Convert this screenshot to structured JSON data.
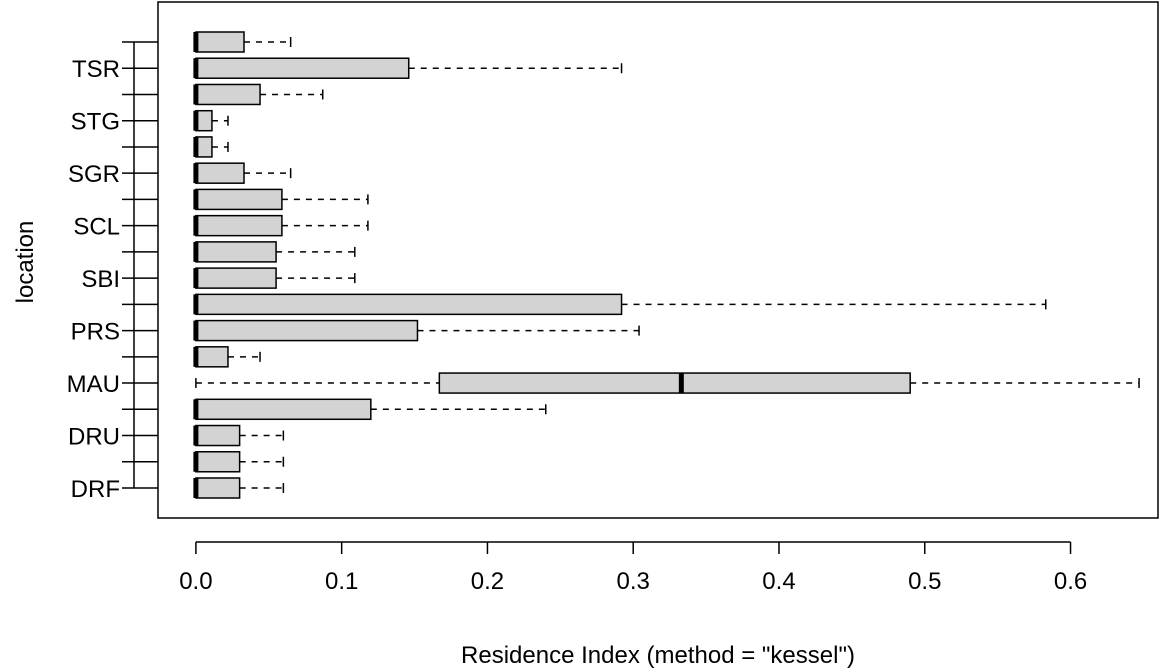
{
  "chart_data": {
    "type": "boxplot",
    "orientation": "horizontal",
    "xlabel": "Residence Index (method = \"kessel\")",
    "ylabel": "location",
    "xlim": [
      -0.026,
      0.66
    ],
    "x_ticks": [
      0.0,
      0.1,
      0.2,
      0.3,
      0.4,
      0.5,
      0.6
    ],
    "x_tick_labels": [
      "0.0",
      "0.1",
      "0.2",
      "0.3",
      "0.4",
      "0.5",
      "0.6"
    ],
    "y_tick_labels": [
      "DRF",
      "",
      "DRU",
      "",
      "MAU",
      "",
      "PRS",
      "",
      "SBI",
      "",
      "SCL",
      "",
      "SGR",
      "",
      "STG",
      "",
      "TSR",
      ""
    ],
    "grid": false,
    "box_fill": "#d3d3d3",
    "boxes": [
      {
        "label": "DRF",
        "whisker_low": 0,
        "q1": 0,
        "median": 0,
        "q3": 0.03,
        "whisker_high": 0.06
      },
      {
        "label": "",
        "whisker_low": 0,
        "q1": 0,
        "median": 0,
        "q3": 0.03,
        "whisker_high": 0.06
      },
      {
        "label": "DRU",
        "whisker_low": 0,
        "q1": 0,
        "median": 0,
        "q3": 0.03,
        "whisker_high": 0.06
      },
      {
        "label": "",
        "whisker_low": 0,
        "q1": 0,
        "median": 0,
        "q3": 0.12,
        "whisker_high": 0.24
      },
      {
        "label": "MAU",
        "whisker_low": 0,
        "q1": 0.167,
        "median": 0.333,
        "q3": 0.49,
        "whisker_high": 0.647
      },
      {
        "label": "",
        "whisker_low": 0,
        "q1": 0,
        "median": 0,
        "q3": 0.022,
        "whisker_high": 0.044
      },
      {
        "label": "PRS",
        "whisker_low": 0,
        "q1": 0,
        "median": 0,
        "q3": 0.152,
        "whisker_high": 0.304
      },
      {
        "label": "",
        "whisker_low": 0,
        "q1": 0,
        "median": 0,
        "q3": 0.292,
        "whisker_high": 0.583
      },
      {
        "label": "SBI",
        "whisker_low": 0,
        "q1": 0,
        "median": 0,
        "q3": 0.055,
        "whisker_high": 0.109
      },
      {
        "label": "",
        "whisker_low": 0,
        "q1": 0,
        "median": 0,
        "q3": 0.055,
        "whisker_high": 0.109
      },
      {
        "label": "SCL",
        "whisker_low": 0,
        "q1": 0,
        "median": 0,
        "q3": 0.059,
        "whisker_high": 0.118
      },
      {
        "label": "",
        "whisker_low": 0,
        "q1": 0,
        "median": 0,
        "q3": 0.059,
        "whisker_high": 0.118
      },
      {
        "label": "SGR",
        "whisker_low": 0,
        "q1": 0,
        "median": 0,
        "q3": 0.033,
        "whisker_high": 0.065
      },
      {
        "label": "",
        "whisker_low": 0,
        "q1": 0,
        "median": 0,
        "q3": 0.011,
        "whisker_high": 0.022
      },
      {
        "label": "STG",
        "whisker_low": 0,
        "q1": 0,
        "median": 0,
        "q3": 0.011,
        "whisker_high": 0.022
      },
      {
        "label": "",
        "whisker_low": 0,
        "q1": 0,
        "median": 0,
        "q3": 0.044,
        "whisker_high": 0.087
      },
      {
        "label": "TSR",
        "whisker_low": 0,
        "q1": 0,
        "median": 0,
        "q3": 0.146,
        "whisker_high": 0.292
      },
      {
        "label": "",
        "whisker_low": 0,
        "q1": 0,
        "median": 0,
        "q3": 0.033,
        "whisker_high": 0.065
      }
    ]
  }
}
